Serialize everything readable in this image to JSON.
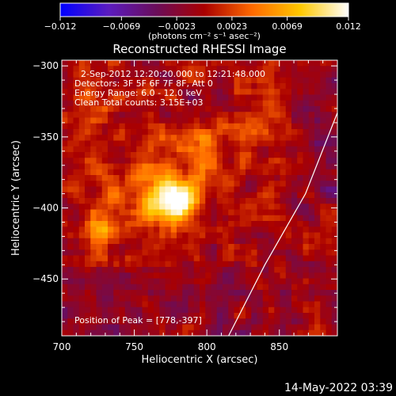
{
  "chart_data": {
    "type": "heatmap",
    "title": "Reconstructed RHESSI Image",
    "xlabel": "Heliocentric X (arcsec)",
    "ylabel": "Heliocentric Y (arcsec)",
    "xlim": [
      700,
      890
    ],
    "ylim": [
      -490,
      -296
    ],
    "x_ticks": [
      700,
      750,
      800,
      850
    ],
    "y_ticks": [
      -300,
      -350,
      -400,
      -450
    ],
    "colorbar": {
      "min": -0.012,
      "max": 0.012,
      "tick_values": [
        -0.012,
        -0.0069,
        -0.0023,
        0.0023,
        0.0069,
        0.012
      ],
      "tick_labels": [
        "−0.012",
        "−0.0069",
        "−0.0023",
        "0.0023",
        "0.0069",
        "0.012"
      ],
      "unit_label": "(photons cm⁻² s⁻¹ asec⁻²)",
      "colors": [
        "#0000ff",
        "#5b1cc0",
        "#6a0d5a",
        "#aa0000",
        "#ff6a00",
        "#ffc800",
        "#ffffff"
      ]
    },
    "annotations": [
      "2-Sep-2012 12:20:20.000 to 12:21:48.000",
      "Detectors: 3F 5F 6F 7F 8F, Att 0",
      "Energy Range: 6.0 - 12.0 keV",
      "Clean     Total counts: 3.15E+03"
    ],
    "peak_label": "Position of Peak = [778,-397]",
    "peak": [
      778,
      -397
    ],
    "sources": [
      {
        "x": 778,
        "y": -397,
        "amp": 0.012,
        "sx": 9,
        "sy": 8
      },
      {
        "x": 765,
        "y": -385,
        "amp": 0.0055,
        "sx": 22,
        "sy": 18
      },
      {
        "x": 800,
        "y": -360,
        "amp": 0.0035,
        "sx": 12,
        "sy": 10
      },
      {
        "x": 828,
        "y": -345,
        "amp": 0.0045,
        "sx": 7,
        "sy": 8
      },
      {
        "x": 725,
        "y": -415,
        "amp": 0.0045,
        "sx": 7,
        "sy": 9
      },
      {
        "x": 722,
        "y": -328,
        "amp": 0.0025,
        "sx": 8,
        "sy": 8
      },
      {
        "x": 835,
        "y": -400,
        "amp": 0.0025,
        "sx": 8,
        "sy": 8
      },
      {
        "x": 876,
        "y": -425,
        "amp": 0.0028,
        "sx": 8,
        "sy": 10
      }
    ],
    "limb_curve": [
      [
        890,
        -333
      ],
      [
        868,
        -390
      ],
      [
        840,
        -440
      ],
      [
        815,
        -490
      ]
    ],
    "limb_color": "#ffffff"
  },
  "footer": {
    "timestamp": "14-May-2022 03:39"
  }
}
